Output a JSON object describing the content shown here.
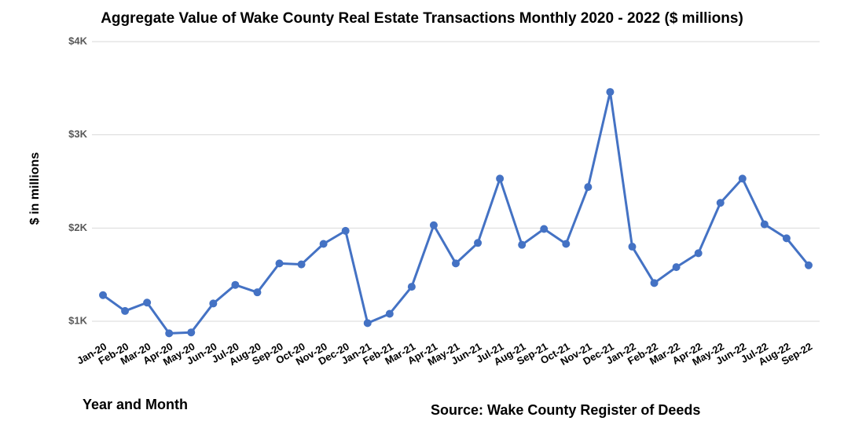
{
  "chart_data": {
    "type": "line",
    "title": "Aggregate Value of Wake County Real Estate Transactions Monthly 2020 - 2022 ($ millions)",
    "y_label": "$ in millions",
    "x_label": "Year and Month",
    "source": "Source: Wake County Register of Deeds",
    "categories": [
      "Jan-20",
      "Feb-20",
      "Mar-20",
      "Apr-20",
      "May-20",
      "Jun-20",
      "Jul-20",
      "Aug-20",
      "Sep-20",
      "Oct-20",
      "Nov-20",
      "Dec-20",
      "Jan-21",
      "Feb-21",
      "Mar-21",
      "Apr-21",
      "May-21",
      "Jun-21",
      "Jul-21",
      "Aug-21",
      "Sep-21",
      "Oct-21",
      "Nov-21",
      "Dec-21",
      "Jan-22",
      "Feb-22",
      "Mar-22",
      "Apr-22",
      "May-22",
      "Jun-22",
      "Jul-22",
      "Aug-22",
      "Sep-22"
    ],
    "series": [
      {
        "name": "Aggregate Value",
        "color": "#4472c4",
        "values": [
          1280,
          1110,
          1200,
          870,
          880,
          1190,
          1390,
          1310,
          1620,
          1610,
          1830,
          1970,
          980,
          1080,
          1370,
          2030,
          1620,
          1840,
          2530,
          1820,
          1990,
          1830,
          2440,
          3460,
          1800,
          1410,
          1580,
          1730,
          2270,
          2530,
          2040,
          1890,
          1600
        ]
      }
    ],
    "ylim": [
      800,
      4000
    ],
    "yticks": [
      {
        "value": 1000,
        "label": "$1K"
      },
      {
        "value": 2000,
        "label": "$2K"
      },
      {
        "value": 3000,
        "label": "$3K"
      },
      {
        "value": 4000,
        "label": "$4K"
      }
    ],
    "grid": true
  }
}
